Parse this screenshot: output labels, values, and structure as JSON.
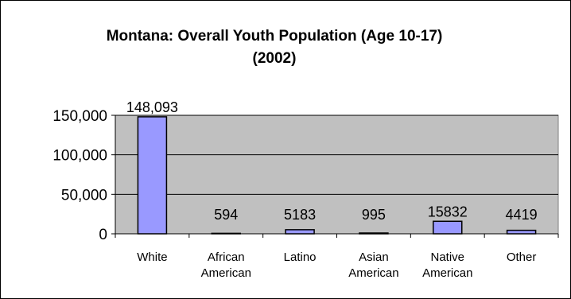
{
  "chart_data": {
    "type": "bar",
    "title_line1": "Montana: Overall Youth Population (Age 10-17)",
    "title_line2": "(2002)",
    "categories": [
      [
        "White"
      ],
      [
        "African",
        "American"
      ],
      [
        "Latino"
      ],
      [
        "Asian",
        "American"
      ],
      [
        "Native",
        "American"
      ],
      [
        "Other"
      ]
    ],
    "values": [
      148093,
      594,
      5183,
      995,
      15832,
      4419
    ],
    "data_labels": [
      "148,093",
      "594",
      "5183",
      "995",
      "15832",
      "4419"
    ],
    "ylim": [
      0,
      150000
    ],
    "yticks": [
      0,
      50000,
      100000,
      150000
    ],
    "ytick_labels": [
      "0",
      "50,000",
      "100,000",
      "150,000"
    ],
    "colors": {
      "plot_bg": "#C0C0C0",
      "bar_fill": "#9999FF",
      "bar_stroke": "#000000"
    },
    "grid": true,
    "legend": "none"
  }
}
